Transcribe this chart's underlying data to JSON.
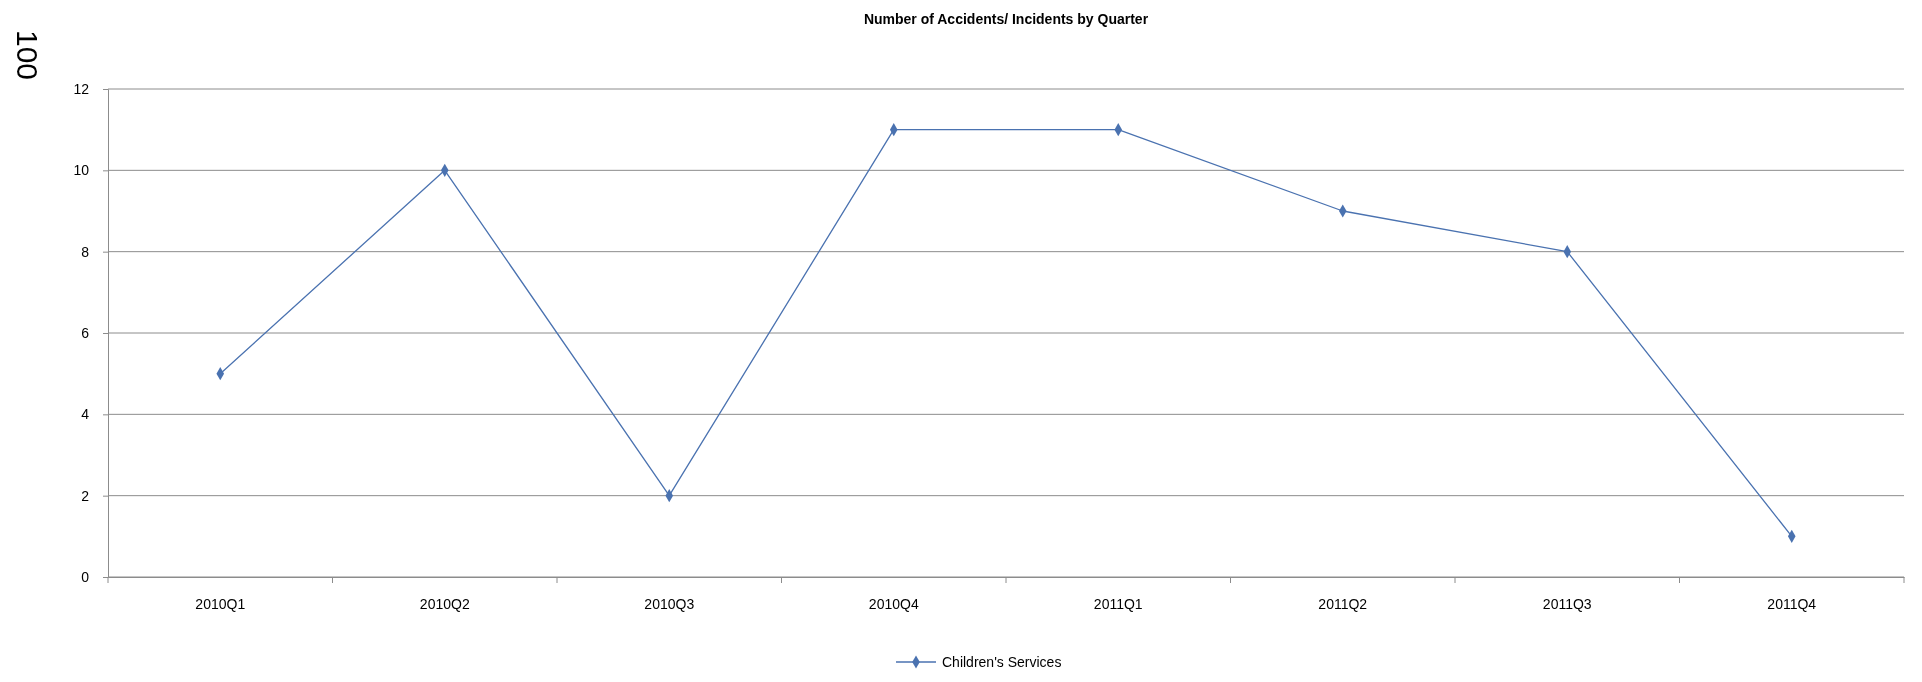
{
  "chart_data": {
    "type": "line",
    "title": "Number of Accidents/ Incidents by Quarter",
    "categories": [
      "2010Q1",
      "2010Q2",
      "2010Q3",
      "2010Q4",
      "2011Q1",
      "2011Q2",
      "2011Q3",
      "2011Q4"
    ],
    "series": [
      {
        "name": "Children's Services",
        "color": "#4a72b0",
        "values": [
          5,
          10,
          2,
          11,
          11,
          9,
          8,
          1
        ]
      }
    ],
    "ylim": [
      0,
      12
    ],
    "yticks": [
      0,
      2,
      4,
      6,
      8,
      10,
      12
    ],
    "grid": "y",
    "legend": "bottom",
    "marker": "diamond",
    "line_style": "solid",
    "annotations": [
      "100"
    ]
  }
}
